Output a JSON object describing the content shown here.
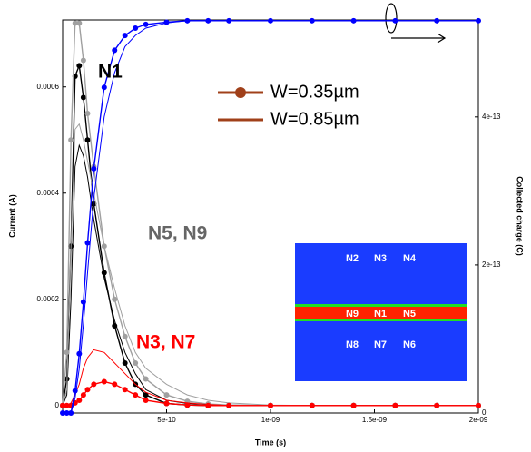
{
  "chart_data": {
    "type": "line",
    "x_label": "Time (s)",
    "y_label": "Current (A)",
    "y2_label": "Collected charge (C)",
    "x": [
      0,
      2e-11,
      4e-11,
      6e-11,
      8e-11,
      1e-10,
      1.2e-10,
      1.5e-10,
      2e-10,
      2.5e-10,
      3e-10,
      3.5e-10,
      4e-10,
      5e-10,
      6e-10,
      7e-10,
      8e-10,
      1e-09,
      1.2e-09,
      1.4e-09,
      1.6e-09,
      1.8e-09,
      2e-09
    ],
    "xlim": [
      0,
      2e-09
    ],
    "xticks": [
      {
        "value": 5e-10,
        "label": "5e-10"
      },
      {
        "value": 1e-09,
        "label": "1e-09"
      },
      {
        "value": 1.5e-09,
        "label": "1.5e-09"
      },
      {
        "value": 2e-09,
        "label": "2e-09"
      }
    ],
    "ylim": [
      -1.4e-05,
      0.000726
    ],
    "yticks": [
      0,
      0.0002,
      0.0004,
      0.0006
    ],
    "y2lim": [
      0,
      5.31e-13
    ],
    "y2ticks": [
      0,
      {
        "value": 2e-13,
        "label": "2e-13"
      },
      {
        "value": 4e-13,
        "label": "4e-13"
      }
    ],
    "series": [
      {
        "color": "#000000",
        "markers": true,
        "values": [
          0,
          5e-05,
          0.0003,
          0.00062,
          0.00064,
          0.00058,
          0.0005,
          0.00038,
          0.00025,
          0.00015,
          8e-05,
          4e-05,
          2e-05,
          4e-06,
          1e-06,
          0,
          0,
          0,
          0,
          0,
          0,
          0,
          0
        ]
      },
      {
        "color": "#000000",
        "markers": false,
        "values": [
          0,
          2e-05,
          0.0002,
          0.00045,
          0.00049,
          0.00047,
          0.00043,
          0.00035,
          0.00024,
          0.00016,
          0.0001,
          6e-05,
          3e-05,
          1e-05,
          4e-06,
          2e-06,
          1e-06,
          0,
          0,
          0,
          0,
          0,
          0
        ]
      },
      {
        "color": "#a0a0a0",
        "markers": true,
        "values": [
          0,
          0.0001,
          0.0005,
          0.00072,
          0.00072,
          0.00065,
          0.00055,
          0.00045,
          0.0003,
          0.0002,
          0.00013,
          8e-05,
          5e-05,
          2e-05,
          8e-06,
          3e-06,
          1e-06,
          0,
          0,
          0,
          0,
          0,
          0
        ]
      },
      {
        "color": "#a0a0a0",
        "markers": false,
        "values": [
          0,
          3e-05,
          0.0003,
          0.00052,
          0.00053,
          0.0005,
          0.00046,
          0.0004,
          0.0003,
          0.00022,
          0.00015,
          0.0001,
          7e-05,
          4e-05,
          2e-05,
          1e-05,
          5e-06,
          1e-06,
          0,
          0,
          0,
          0,
          0
        ]
      },
      {
        "color": "#ff0000",
        "markers": true,
        "values": [
          0,
          0,
          0,
          5e-06,
          1e-05,
          2e-05,
          3e-05,
          4e-05,
          4.5e-05,
          4e-05,
          3e-05,
          2e-05,
          1e-05,
          4e-06,
          1e-06,
          0,
          0,
          0,
          0,
          0,
          0,
          0,
          0
        ]
      },
      {
        "color": "#ff0000",
        "markers": false,
        "values": [
          0,
          0,
          5e-06,
          2e-05,
          4e-05,
          7e-05,
          9e-05,
          0.000105,
          0.0001,
          8e-05,
          6e-05,
          4e-05,
          2.5e-05,
          1e-05,
          5e-06,
          2e-06,
          0,
          0,
          0,
          0,
          0,
          0,
          0
        ]
      },
      {
        "color": "#0000ff",
        "markers": true,
        "axis": "y2",
        "values": [
          0,
          0,
          0,
          3e-14,
          8e-14,
          1.5e-13,
          2.3e-13,
          3.3e-13,
          4.4e-13,
          4.9e-13,
          5.1e-13,
          5.2e-13,
          5.25e-13,
          5.28e-13,
          5.3e-13,
          5.3e-13,
          5.3e-13,
          5.3e-13,
          5.3e-13,
          5.3e-13,
          5.3e-13,
          5.3e-13,
          5.3e-13
        ]
      },
      {
        "color": "#0000ff",
        "markers": false,
        "axis": "y2",
        "values": [
          0,
          0,
          0,
          2e-14,
          6e-14,
          1.2e-13,
          1.9e-13,
          2.9e-13,
          4e-13,
          4.6e-13,
          4.95e-13,
          5.1e-13,
          5.2e-13,
          5.27e-13,
          5.3e-13,
          5.3e-13,
          5.3e-13,
          5.3e-13,
          5.3e-13,
          5.3e-13,
          5.3e-13,
          5.3e-13,
          5.3e-13
        ]
      }
    ],
    "legend": [
      {
        "label": "W=0.35µm",
        "color": "#a0401a",
        "markers": true
      },
      {
        "label": "W=0.85µm",
        "color": "#a0401a",
        "markers": false
      }
    ],
    "annotations": [
      {
        "text": "N1",
        "color": "#000000"
      },
      {
        "text": "N5, N9",
        "color": "#666666"
      },
      {
        "text": "N3, N7",
        "color": "#ff0000"
      }
    ],
    "inset": {
      "rows": [
        [
          "N2",
          "N3",
          "N4"
        ],
        [
          "N9",
          "N1",
          "N5"
        ],
        [
          "N8",
          "N7",
          "N6"
        ]
      ]
    }
  }
}
